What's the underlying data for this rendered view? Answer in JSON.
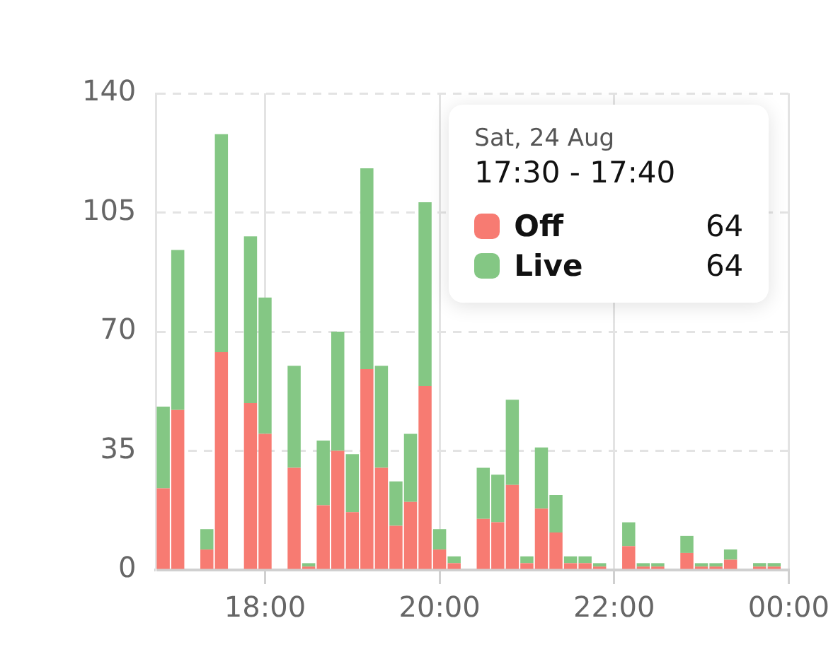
{
  "chart_data": {
    "type": "bar",
    "stacked": true,
    "x": [
      16.8333,
      17,
      17.1667,
      17.3333,
      17.5,
      17.6667,
      17.8333,
      18,
      18.1667,
      18.3333,
      18.5,
      18.6667,
      18.8333,
      19,
      19.1667,
      19.3333,
      19.5,
      19.6667,
      19.8333,
      20,
      20.1667,
      20.3333,
      20.5,
      20.6667,
      20.8333,
      21,
      21.1667,
      21.3333,
      21.5,
      21.6667,
      21.8333,
      22,
      22.1667,
      22.3333,
      22.5,
      22.6667,
      22.8333,
      23,
      23.1667,
      23.3333,
      23.5,
      23.6667,
      23.8333
    ],
    "series": [
      {
        "name": "Off",
        "color": "#f77b72",
        "values": [
          24,
          47,
          null,
          6,
          64,
          null,
          49,
          40,
          null,
          30,
          1,
          19,
          35,
          17,
          59,
          30,
          13,
          20,
          54,
          6,
          2,
          null,
          15,
          14,
          25,
          2,
          18,
          11,
          2,
          2,
          1,
          null,
          7,
          1,
          1,
          null,
          5,
          1,
          1,
          3,
          null,
          1,
          1
        ]
      },
      {
        "name": "Live",
        "color": "#84c784",
        "values": [
          24,
          47,
          null,
          6,
          64,
          null,
          49,
          40,
          null,
          30,
          1,
          19,
          35,
          17,
          59,
          30,
          13,
          20,
          54,
          6,
          2,
          null,
          15,
          14,
          25,
          2,
          18,
          11,
          2,
          2,
          1,
          null,
          7,
          1,
          1,
          null,
          5,
          1,
          1,
          3,
          null,
          1,
          1
        ]
      }
    ],
    "xlim": [
      16.75,
      24
    ],
    "xticks": [
      {
        "value": 18,
        "label": "18:00"
      },
      {
        "value": 20,
        "label": "20:00"
      },
      {
        "value": 22,
        "label": "22:00"
      },
      {
        "value": 24,
        "label": "00:00"
      }
    ],
    "ylim": [
      0,
      140
    ],
    "yticks": [
      0,
      35,
      70,
      105,
      140
    ],
    "grid": true,
    "legend": "top right",
    "annotations": [
      "Sat, 24 Aug",
      "17:30 - 17:40",
      "64",
      "64"
    ]
  }
}
